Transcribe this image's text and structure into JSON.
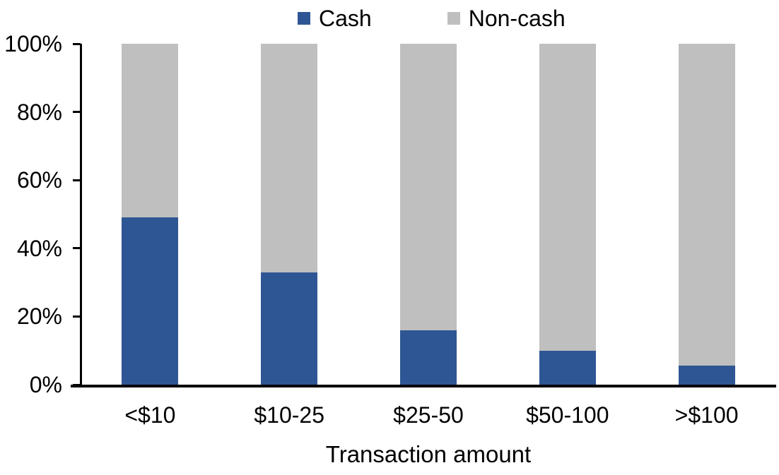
{
  "chart_data": {
    "type": "bar",
    "stacked": true,
    "orientation": "vertical",
    "title": "",
    "xlabel": "Transaction amount",
    "ylabel": "",
    "categories": [
      "<$10",
      "$10-25",
      "$25-50",
      "$50-100",
      ">$100"
    ],
    "series": [
      {
        "name": "Cash",
        "color": "#2F5694",
        "values": [
          49,
          33,
          16,
          10,
          5.5
        ]
      },
      {
        "name": "Non-cash",
        "color": "#BFBFBF",
        "values": [
          51,
          67,
          84,
          90,
          94.5
        ]
      }
    ],
    "ylim": [
      0,
      100
    ],
    "ytick_values": [
      0,
      20,
      40,
      60,
      80,
      100
    ],
    "ytick_labels": [
      "0%",
      "20%",
      "40%",
      "60%",
      "80%",
      "100%"
    ],
    "grid": false,
    "legend_position": "top",
    "axis_color": "#000000",
    "background_color": "#FFFFFF"
  }
}
